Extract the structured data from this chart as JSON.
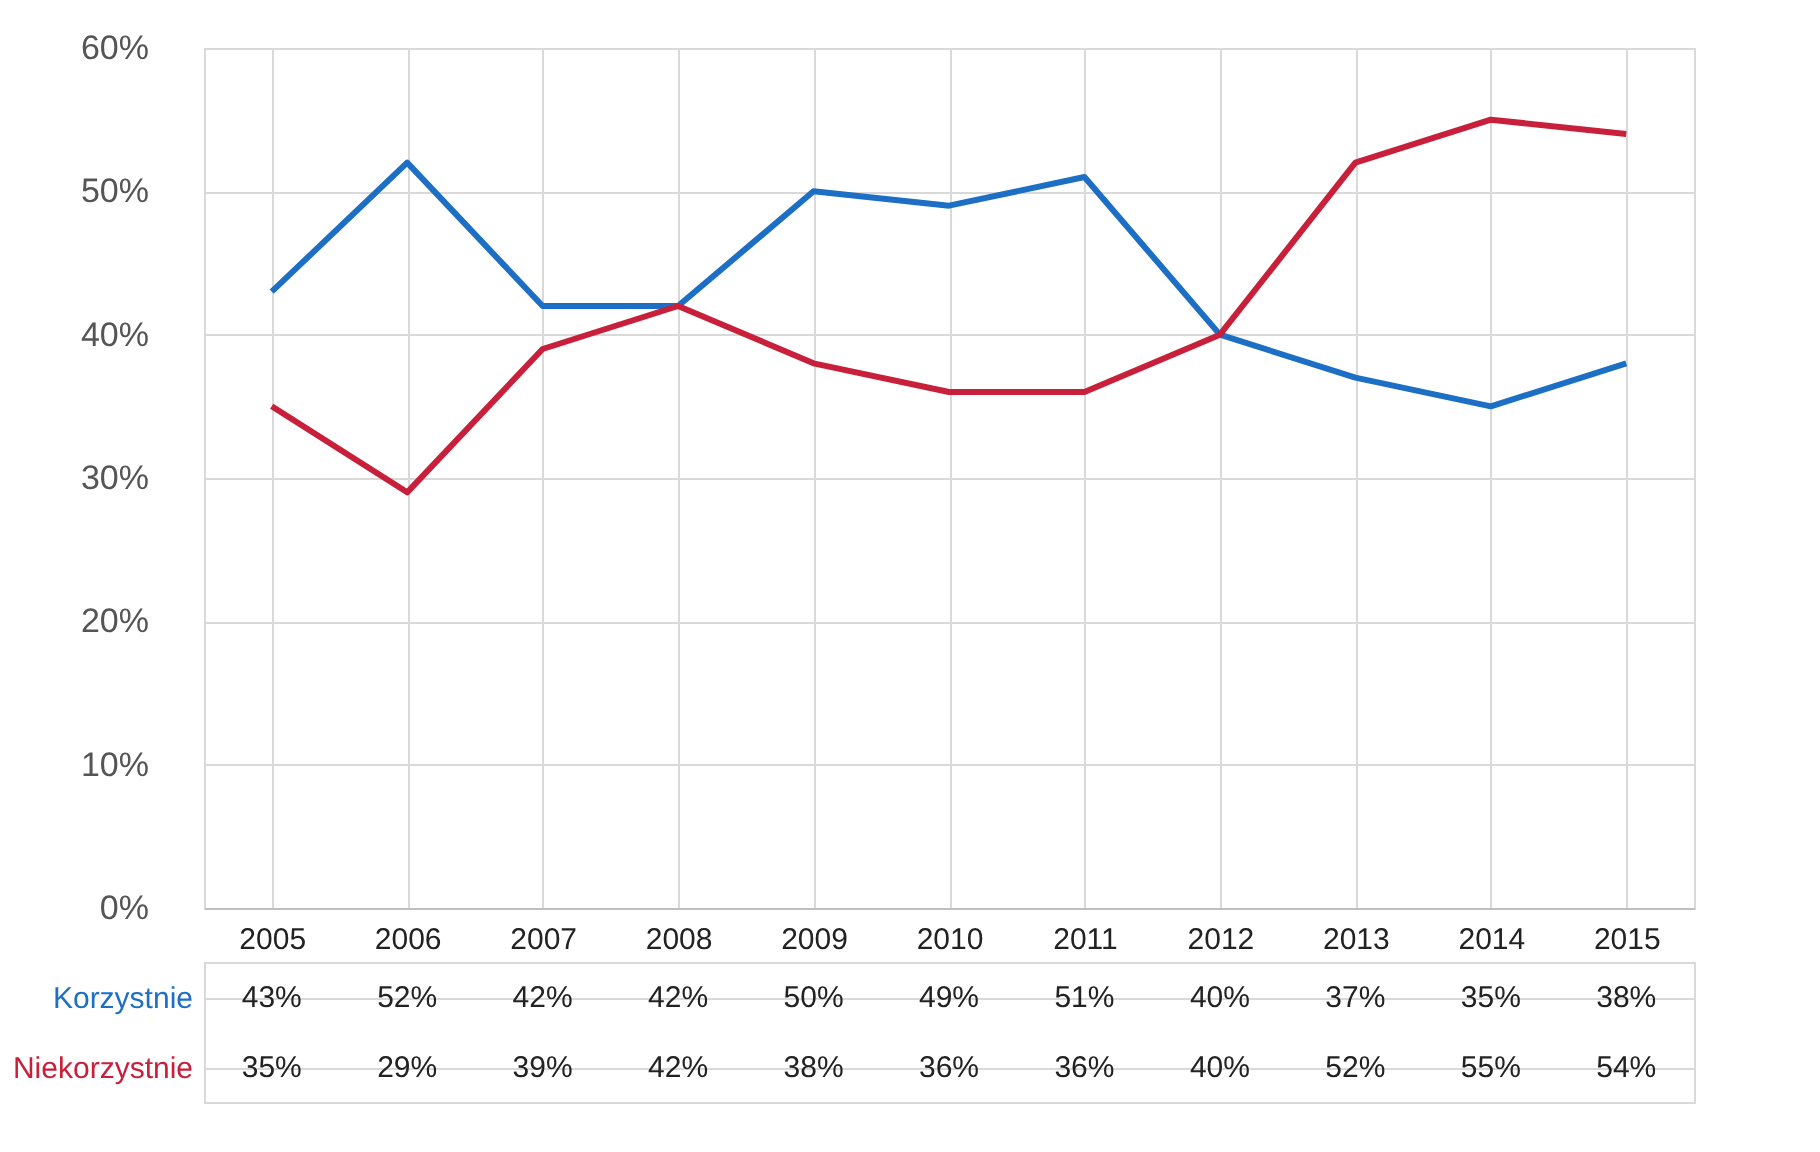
{
  "chart_data": {
    "type": "line",
    "categories": [
      "2005",
      "2006",
      "2007",
      "2008",
      "2009",
      "2010",
      "2011",
      "2012",
      "2013",
      "2014",
      "2015"
    ],
    "series": [
      {
        "name": "Korzystnie",
        "color": "#1c6fc4",
        "values": [
          43,
          52,
          42,
          42,
          50,
          49,
          51,
          40,
          37,
          35,
          38
        ],
        "value_labels": [
          "43%",
          "52%",
          "42%",
          "42%",
          "50%",
          "49%",
          "51%",
          "40%",
          "37%",
          "35%",
          "38%"
        ]
      },
      {
        "name": "Niekorzystnie",
        "color": "#c8203a",
        "values": [
          35,
          29,
          39,
          42,
          38,
          36,
          36,
          40,
          52,
          55,
          54
        ],
        "value_labels": [
          "35%",
          "29%",
          "39%",
          "42%",
          "38%",
          "36%",
          "36%",
          "40%",
          "52%",
          "55%",
          "54%"
        ]
      }
    ],
    "ylim": [
      0,
      60
    ],
    "yticks": [
      {
        "value": 0,
        "label": "0%"
      },
      {
        "value": 10,
        "label": "10%"
      },
      {
        "value": 20,
        "label": "20%"
      },
      {
        "value": 30,
        "label": "30%"
      },
      {
        "value": 40,
        "label": "40%"
      },
      {
        "value": 50,
        "label": "50%"
      },
      {
        "value": 60,
        "label": "60%"
      }
    ],
    "grid": true
  }
}
